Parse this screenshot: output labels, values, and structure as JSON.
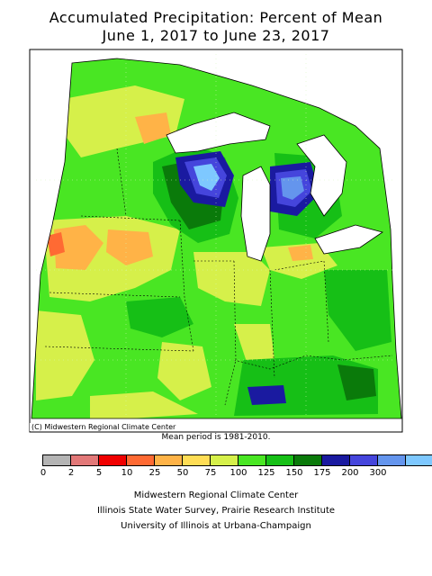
{
  "title_line1": "Accumulated Precipitation: Percent of Mean",
  "title_line2": "June 1, 2017 to June 23, 2017",
  "copyright": "(C) Midwestern Regional Climate Center",
  "mean_period": "Mean period is 1981-2010.",
  "legend": {
    "ticks": [
      "0",
      "2",
      "5",
      "10",
      "25",
      "50",
      "75",
      "100",
      "125",
      "150",
      "175",
      "200",
      "300"
    ],
    "colors": [
      "#b4b4b4",
      "#e27878",
      "#f00000",
      "#ff6a33",
      "#ffb347",
      "#ffdd55",
      "#d6f04a",
      "#49e623",
      "#16bf16",
      "#0a7a0a",
      "#1a1aa0",
      "#4545dc",
      "#6495ed",
      "#7ec8ff"
    ]
  },
  "credits": {
    "line1": "Midwestern Regional Climate Center",
    "line2": "Illinois State Water Survey, Prairie Research Institute",
    "line3": "University of Illinois at Urbana-Champaign"
  },
  "map": {
    "region": "Midwest United States",
    "base_color": "#49e623"
  }
}
